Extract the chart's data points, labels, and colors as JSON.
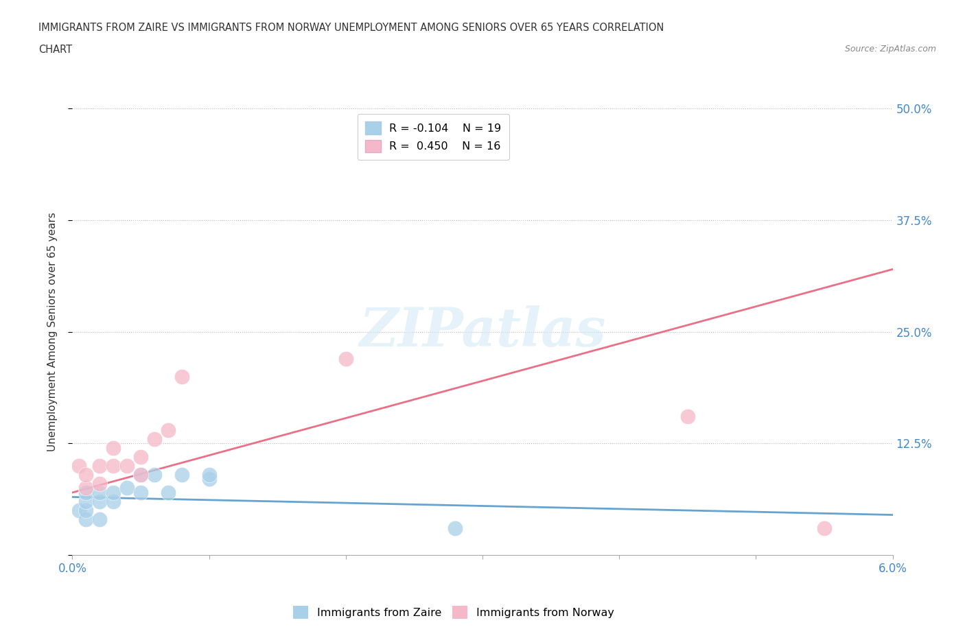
{
  "title_line1": "IMMIGRANTS FROM ZAIRE VS IMMIGRANTS FROM NORWAY UNEMPLOYMENT AMONG SENIORS OVER 65 YEARS CORRELATION",
  "title_line2": "CHART",
  "source": "Source: ZipAtlas.com",
  "ylabel": "Unemployment Among Seniors over 65 years",
  "xlim": [
    0.0,
    0.06
  ],
  "ylim": [
    0.0,
    0.5
  ],
  "xticks": [
    0.0,
    0.01,
    0.02,
    0.03,
    0.04,
    0.05,
    0.06
  ],
  "ytick_positions": [
    0.0,
    0.125,
    0.25,
    0.375,
    0.5
  ],
  "ytick_labels": [
    "",
    "12.5%",
    "25.0%",
    "37.5%",
    "50.0%"
  ],
  "watermark": "ZIPatlas",
  "legend_r1": "R = -0.104",
  "legend_n1": "N = 19",
  "legend_r2": "R =  0.450",
  "legend_n2": "N = 16",
  "zaire_color": "#a8d0e8",
  "norway_color": "#f5b8c8",
  "zaire_line_color": "#5599cc",
  "norway_line_color": "#e8607a",
  "grid_color": "#bbbbbb",
  "axis_color": "#aaaaaa",
  "title_color": "#333333",
  "tick_label_color": "#4488cc",
  "ylabel_color": "#333333",
  "zaire_x": [
    0.0005,
    0.001,
    0.001,
    0.001,
    0.001,
    0.002,
    0.002,
    0.002,
    0.003,
    0.003,
    0.004,
    0.005,
    0.005,
    0.006,
    0.007,
    0.008,
    0.01,
    0.01,
    0.028
  ],
  "zaire_y": [
    0.05,
    0.04,
    0.05,
    0.06,
    0.07,
    0.04,
    0.06,
    0.07,
    0.06,
    0.07,
    0.075,
    0.07,
    0.09,
    0.09,
    0.07,
    0.09,
    0.085,
    0.09,
    0.03
  ],
  "norway_x": [
    0.0005,
    0.001,
    0.001,
    0.002,
    0.002,
    0.003,
    0.003,
    0.004,
    0.005,
    0.005,
    0.006,
    0.007,
    0.008,
    0.02,
    0.045,
    0.055
  ],
  "norway_y": [
    0.1,
    0.075,
    0.09,
    0.08,
    0.1,
    0.1,
    0.12,
    0.1,
    0.09,
    0.11,
    0.13,
    0.14,
    0.2,
    0.22,
    0.155,
    0.03
  ],
  "zaire_line_x0": 0.0,
  "zaire_line_x1": 0.06,
  "zaire_line_y0": 0.065,
  "zaire_line_y1": 0.045,
  "norway_line_x0": 0.0,
  "norway_line_x1": 0.06,
  "norway_line_y0": 0.07,
  "norway_line_y1": 0.32
}
